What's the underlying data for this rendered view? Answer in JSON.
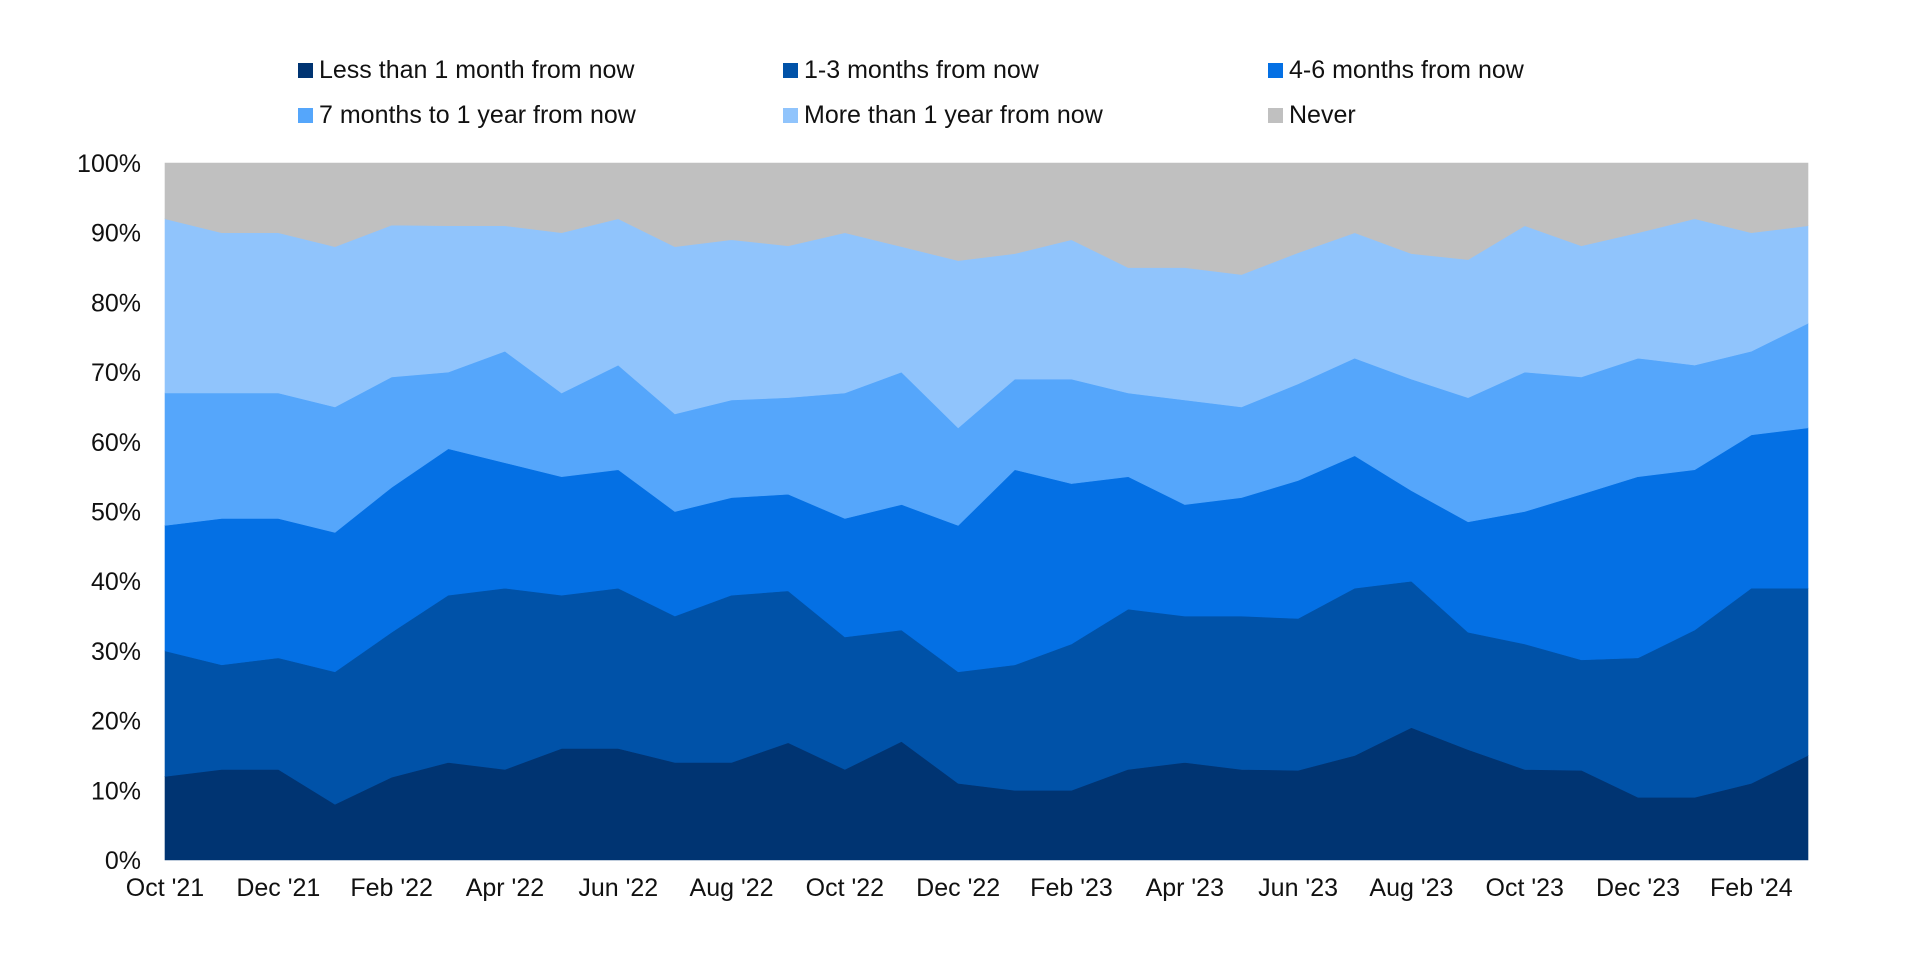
{
  "chart_data": {
    "type": "area",
    "stacked": true,
    "normalized": true,
    "title": "",
    "xlabel": "",
    "ylabel": "",
    "ylim": [
      0,
      100
    ],
    "y_ticks": [
      "0%",
      "10%",
      "20%",
      "30%",
      "40%",
      "50%",
      "60%",
      "70%",
      "80%",
      "90%",
      "100%"
    ],
    "x_tick_labels": [
      "Oct '21",
      "Dec '21",
      "Feb '22",
      "Apr '22",
      "Jun '22",
      "Aug '22",
      "Oct '22",
      "Dec '22",
      "Feb '23",
      "Apr '23",
      "Jun '23",
      "Aug '23",
      "Oct '23",
      "Dec '23",
      "Feb '24"
    ],
    "x": [
      "Oct '21",
      "Nov '21",
      "Dec '21",
      "Jan '22",
      "Feb '22",
      "Mar '22",
      "Apr '22",
      "May '22",
      "Jun '22",
      "Jul '22",
      "Aug '22",
      "Sep '22",
      "Oct '22",
      "Nov '22",
      "Dec '22",
      "Jan '23",
      "Feb '23",
      "Mar '23",
      "Apr '23",
      "May '23",
      "Jun '23",
      "Jul '23",
      "Aug '23",
      "Sep '23",
      "Oct '23",
      "Nov '23",
      "Dec '23",
      "Jan '24",
      "Feb '24",
      "Mar '24"
    ],
    "grid": false,
    "legend_position": "top",
    "series": [
      {
        "name": "Less than 1 month from now",
        "color": "#003472",
        "values": [
          12,
          13,
          13,
          8,
          12,
          14,
          13,
          16,
          16,
          14,
          14,
          17,
          13,
          17,
          11,
          10,
          10,
          13,
          14,
          13,
          13,
          15,
          19,
          16,
          13,
          13,
          9,
          9,
          11,
          15
        ]
      },
      {
        "name": "1-3 months from now",
        "color": "#0052A8",
        "values": [
          18,
          15,
          16,
          19,
          21,
          24,
          26,
          22,
          23,
          21,
          24,
          22,
          19,
          16,
          16,
          18,
          21,
          23,
          21,
          22,
          22,
          24,
          21,
          17,
          18,
          16,
          20,
          24,
          28,
          24
        ]
      },
      {
        "name": "4-6 months from now",
        "color": "#0470E4",
        "values": [
          18,
          21,
          20,
          20,
          21,
          21,
          18,
          17,
          17,
          15,
          14,
          14,
          17,
          18,
          21,
          28,
          23,
          19,
          16,
          17,
          20,
          19,
          13,
          16,
          19,
          24,
          26,
          23,
          22,
          23
        ]
      },
      {
        "name": "7 months to 1 year from now",
        "color": "#55A6FB",
        "values": [
          19,
          18,
          18,
          18,
          16,
          11,
          16,
          12,
          15,
          14,
          14,
          14,
          18,
          19,
          14,
          13,
          15,
          12,
          15,
          13,
          14,
          14,
          16,
          18,
          20,
          17,
          17,
          15,
          12,
          15
        ]
      },
      {
        "name": "More than 1 year from now",
        "color": "#90C4FC",
        "values": [
          25,
          23,
          23,
          23,
          22,
          21,
          18,
          23,
          21,
          24,
          23,
          22,
          23,
          18,
          24,
          18,
          20,
          18,
          19,
          19,
          19,
          18,
          18,
          20,
          21,
          19,
          18,
          21,
          17,
          14
        ]
      },
      {
        "name": "Never",
        "color": "#C0C0C0",
        "values": [
          8,
          10,
          10,
          12,
          9,
          9,
          9,
          10,
          8,
          12,
          11,
          12,
          10,
          12,
          14,
          13,
          11,
          15,
          15,
          16,
          13,
          10,
          13,
          14,
          9,
          12,
          10,
          8,
          10,
          9
        ]
      }
    ]
  }
}
